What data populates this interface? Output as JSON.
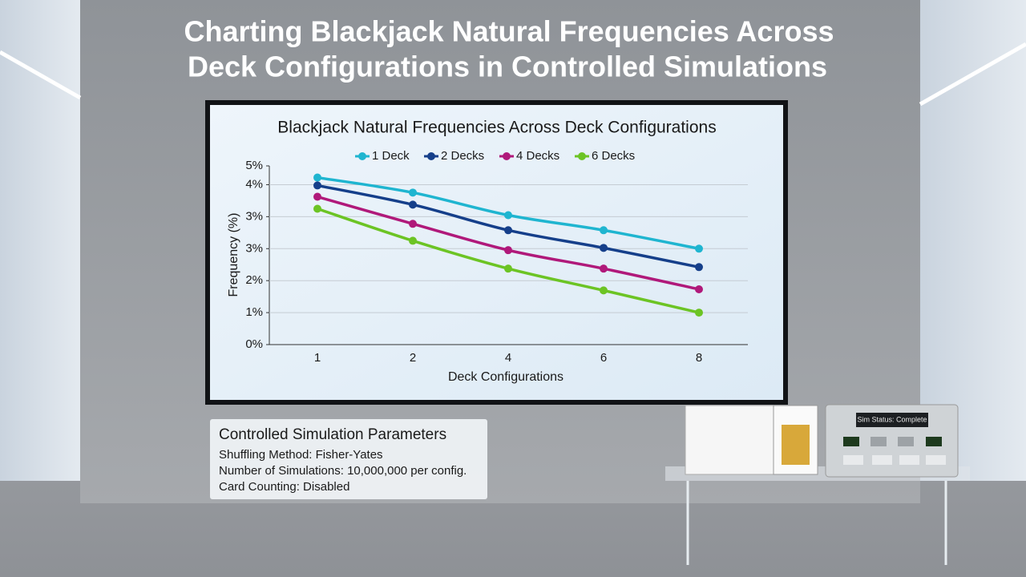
{
  "header": {
    "title_lines": [
      "Charting Blackjack Natural Frequencies Across",
      "Deck Configurations in Controlled Simulations"
    ]
  },
  "chart_data": {
    "type": "line",
    "title": "Blackjack Natural Frequencies Across Deck Configurations",
    "x_label": "Deck Configurations",
    "y_label": "Frequency (%)",
    "categories": [
      "1",
      "2",
      "4",
      "6",
      "8"
    ],
    "series": [
      {
        "name": "1 Deck",
        "color": "#1fb5d0",
        "values": [
          4.44,
          4.04,
          3.44,
          3.04,
          2.55
        ]
      },
      {
        "name": "2 Decks",
        "color": "#153f8a",
        "values": [
          4.23,
          3.72,
          3.04,
          2.57,
          2.06
        ]
      },
      {
        "name": "4 Decks",
        "color": "#b0197a",
        "values": [
          3.93,
          3.21,
          2.51,
          2.02,
          1.47
        ]
      },
      {
        "name": "6 Decks",
        "color": "#6cc424",
        "values": [
          3.61,
          2.76,
          2.02,
          1.44,
          0.85
        ]
      }
    ],
    "ylim": [
      0,
      4.75
    ],
    "yticks": [
      {
        "value": 0,
        "label": "0%"
      },
      {
        "value": 0.85,
        "label": "1%"
      },
      {
        "value": 1.7,
        "label": "2%"
      },
      {
        "value": 2.55,
        "label": "3%"
      },
      {
        "value": 3.4,
        "label": "3%"
      },
      {
        "value": 4.25,
        "label": "4%"
      },
      {
        "value": 4.75,
        "label": "5%"
      }
    ],
    "grid": true,
    "legend": "top"
  },
  "parameters_panel": {
    "title": "Controlled Simulation Parameters",
    "lines": [
      "Shuffling Method: Fisher-Yates",
      "Number of Simulations: 10,000,000 per config.",
      "Card Counting: Disabled"
    ]
  },
  "device": {
    "status": "Sim Status: Complete"
  }
}
